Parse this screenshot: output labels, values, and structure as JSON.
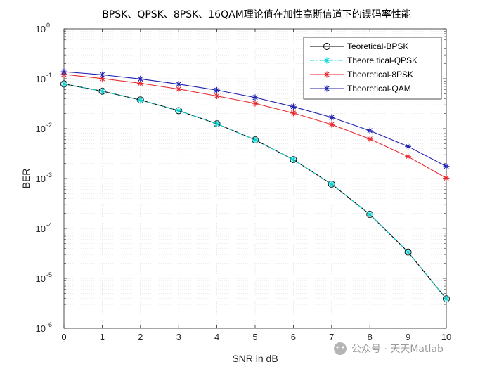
{
  "chart_data": {
    "type": "line",
    "title": "BPSK、QPSK、8PSK、16QAM理论值在加性高斯信道下的误码率性能",
    "xlabel": "SNR in dB",
    "ylabel": "BER",
    "xlim": [
      0,
      10
    ],
    "ylim": [
      1e-06,
      1
    ],
    "yscale": "log",
    "grid": true,
    "legend_position": "top-right",
    "x": [
      0,
      1,
      2,
      3,
      4,
      5,
      6,
      7,
      8,
      9,
      10
    ],
    "x_ticks": [
      "0",
      "1",
      "2",
      "3",
      "4",
      "5",
      "6",
      "7",
      "8",
      "9",
      "10"
    ],
    "y_ticks": [
      {
        "base": "10",
        "exp": "0"
      },
      {
        "base": "10",
        "exp": "-1"
      },
      {
        "base": "10",
        "exp": "-2"
      },
      {
        "base": "10",
        "exp": "-3"
      },
      {
        "base": "10",
        "exp": "-4"
      },
      {
        "base": "10",
        "exp": "-5"
      },
      {
        "base": "10",
        "exp": "-6"
      }
    ],
    "series": [
      {
        "name": "Teoretical-BPSK",
        "color": "#000000",
        "line": "solid",
        "marker": "circle",
        "values": [
          0.0786,
          0.0563,
          0.0375,
          0.0229,
          0.0125,
          0.00595,
          0.00239,
          0.000773,
          0.000191,
          3.36e-05,
          3.87e-06
        ]
      },
      {
        "name": "Theore tical-QPSK",
        "color": "#00d5d5",
        "line": "dashdot",
        "marker": "asterisk",
        "values": [
          0.0786,
          0.0563,
          0.0375,
          0.0229,
          0.0125,
          0.00595,
          0.00239,
          0.000773,
          0.000191,
          3.36e-05,
          3.87e-06
        ]
      },
      {
        "name": "Theoretical-8PSK",
        "color": "#e8262b",
        "line": "solid",
        "marker": "asterisk",
        "values": [
          0.122,
          0.101,
          0.081,
          0.062,
          0.045,
          0.032,
          0.0205,
          0.0121,
          0.0062,
          0.00275,
          0.00102
        ]
      },
      {
        "name": "Theoretical-QAM",
        "color": "#1f1fb0",
        "line": "solid",
        "marker": "asterisk",
        "values": [
          0.138,
          0.12,
          0.099,
          0.078,
          0.059,
          0.042,
          0.0275,
          0.0168,
          0.0091,
          0.0044,
          0.00175
        ]
      }
    ]
  },
  "watermark": "公众号 · 天天Matlab"
}
